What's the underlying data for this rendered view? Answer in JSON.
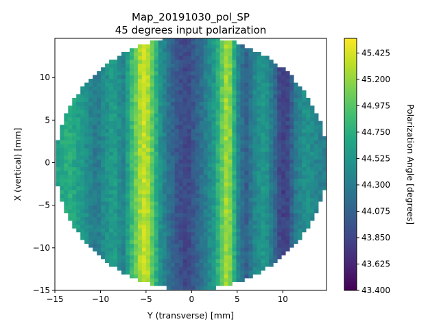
{
  "chart_data": {
    "type": "heatmap",
    "title": "Map_20191030_pol_SP",
    "subtitle": "45 degrees input polarization",
    "xlabel": "Y (transverse) [mm]",
    "ylabel": "X (vertical) [mm]",
    "xlim": [
      -15,
      14.8
    ],
    "ylim": [
      -15,
      14.6
    ],
    "xticks": [
      "−15",
      "−10",
      "−5",
      "0",
      "5",
      "10"
    ],
    "xtick_values": [
      -15,
      -10,
      -5,
      0,
      5,
      10
    ],
    "yticks": [
      "−15",
      "−10",
      "−5",
      "0",
      "5",
      "10"
    ],
    "ytick_values": [
      -15,
      -10,
      -5,
      0,
      5,
      10
    ],
    "circle_center": [
      0,
      0
    ],
    "circle_radius_mm": 14.9,
    "colorbar": {
      "label": "Polarization Angle [degrees]",
      "ticks": [
        "43.400",
        "43.625",
        "43.850",
        "44.075",
        "44.300",
        "44.525",
        "44.750",
        "44.975",
        "45.200",
        "45.425"
      ],
      "tick_values": [
        43.4,
        43.625,
        43.85,
        44.075,
        44.3,
        44.525,
        44.75,
        44.975,
        45.2,
        45.425
      ],
      "vmin": 43.4,
      "vmax": 45.55,
      "colormap": "viridis"
    },
    "stripe_profile": {
      "description_units": "Y position [mm] -> polarization angle [degrees]",
      "y": [
        -15,
        -13.5,
        -12,
        -10.5,
        -9.5,
        -8.5,
        -7.5,
        -6.5,
        -5.7,
        -5,
        -4.2,
        -3.5,
        -2.5,
        -1.5,
        -0.5,
        0.5,
        1.5,
        2.5,
        3.3,
        4,
        4.6,
        5.2,
        6,
        7,
        8,
        9,
        9.8,
        10.5,
        11.5,
        12.5,
        14,
        14.8
      ],
      "angle": [
        44.6,
        44.75,
        44.55,
        44.25,
        44.45,
        44.6,
        44.35,
        44.9,
        45.25,
        45.4,
        44.95,
        44.5,
        44.2,
        43.95,
        43.85,
        44.05,
        44.3,
        44.55,
        45.0,
        45.35,
        44.8,
        44.3,
        44.05,
        44.4,
        44.55,
        44.2,
        43.8,
        43.85,
        44.3,
        44.5,
        44.35,
        44.3
      ]
    }
  }
}
